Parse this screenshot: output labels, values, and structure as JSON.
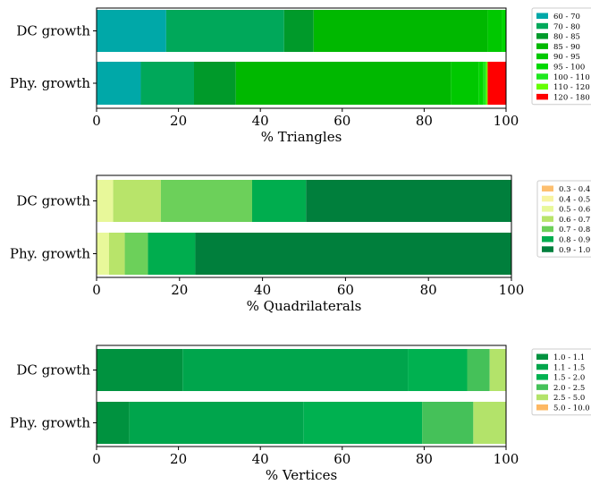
{
  "chart_data": [
    {
      "type": "bar",
      "orientation": "horizontal",
      "stacked": true,
      "xlabel": "% Triangles",
      "xlim": [
        0,
        100
      ],
      "xticks": [
        0,
        20,
        40,
        60,
        80,
        100
      ],
      "categories": [
        "DC growth",
        "Phy. growth"
      ],
      "legend_position": "right",
      "series": [
        {
          "name": "60 - 70",
          "color": "#00a8a8",
          "values": [
            17.0,
            10.8
          ]
        },
        {
          "name": "70 - 80",
          "color": "#00a85a",
          "values": [
            28.8,
            13.0
          ]
        },
        {
          "name": "80 - 85",
          "color": "#009a2a",
          "values": [
            7.2,
            10.2
          ]
        },
        {
          "name": "85 - 90",
          "color": "#00b800",
          "values": [
            42.5,
            52.5
          ]
        },
        {
          "name": "90 - 95",
          "color": "#00c800",
          "values": [
            3.5,
            6.8
          ]
        },
        {
          "name": "95 - 100",
          "color": "#00d800",
          "values": [
            1.0,
            1.2
          ]
        },
        {
          "name": "100 - 110",
          "color": "#1fe81f",
          "values": [
            0.0,
            0.6
          ]
        },
        {
          "name": "110 - 120",
          "color": "#66ff00",
          "values": [
            0.0,
            0.4
          ]
        },
        {
          "name": "120 - 180",
          "color": "#ff0000",
          "values": [
            0.0,
            4.5
          ]
        }
      ]
    },
    {
      "type": "bar",
      "orientation": "horizontal",
      "stacked": true,
      "xlabel": "% Quadrilaterals",
      "xlim": [
        0,
        100
      ],
      "xticks": [
        0,
        20,
        40,
        60,
        80,
        100
      ],
      "categories": [
        "DC growth",
        "Phy. growth"
      ],
      "legend_position": "right",
      "series": [
        {
          "name": "0.3 - 0.4",
          "color": "#fdbf6f",
          "values": [
            0.0,
            0.0
          ]
        },
        {
          "name": "0.4 - 0.5",
          "color": "#f7f4a1",
          "values": [
            0.0,
            0.0
          ]
        },
        {
          "name": "0.5 - 0.6",
          "color": "#e8f89a",
          "values": [
            4.0,
            3.0
          ]
        },
        {
          "name": "0.6 - 0.7",
          "color": "#b8e46a",
          "values": [
            11.5,
            3.8
          ]
        },
        {
          "name": "0.7 - 0.8",
          "color": "#6cd05a",
          "values": [
            22.0,
            5.6
          ]
        },
        {
          "name": "0.8 - 0.9",
          "color": "#00ad4e",
          "values": [
            13.0,
            11.4
          ]
        },
        {
          "name": "0.9 - 1.0",
          "color": "#007f3c",
          "values": [
            49.5,
            76.2
          ]
        }
      ]
    },
    {
      "type": "bar",
      "orientation": "horizontal",
      "stacked": true,
      "xlabel": "% Vertices",
      "xlim": [
        0,
        100
      ],
      "xticks": [
        0,
        20,
        40,
        60,
        80,
        100
      ],
      "categories": [
        "DC growth",
        "Phy. growth"
      ],
      "legend_position": "right",
      "series": [
        {
          "name": "1.0 - 1.1",
          "color": "#00923f",
          "values": [
            21.0,
            8.0
          ]
        },
        {
          "name": "1.1 - 1.5",
          "color": "#00a54c",
          "values": [
            55.0,
            42.5
          ]
        },
        {
          "name": "1.5 - 2.0",
          "color": "#00b150",
          "values": [
            14.5,
            29.0
          ]
        },
        {
          "name": "2.0 - 2.5",
          "color": "#45c159",
          "values": [
            5.5,
            12.5
          ]
        },
        {
          "name": "2.5 - 5.0",
          "color": "#b3e36a",
          "values": [
            4.0,
            8.0
          ]
        },
        {
          "name": "5.0 - 10.0",
          "color": "#fdb863",
          "values": [
            0.0,
            0.0
          ]
        }
      ]
    }
  ]
}
